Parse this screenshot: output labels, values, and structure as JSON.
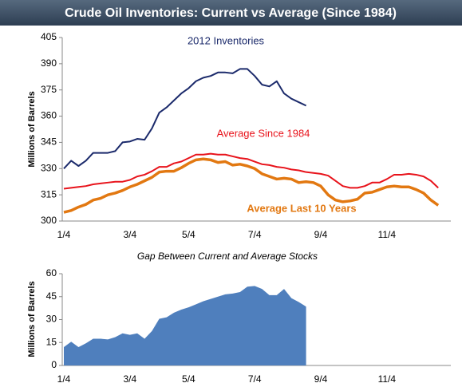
{
  "title": "Crude Oil Inventories: Current vs Average (Since 1984)",
  "chart_data": [
    {
      "type": "line",
      "ylabel": "Millions of Barrels",
      "categories": [
        "1/4",
        null,
        null,
        null,
        null,
        null,
        null,
        null,
        null,
        "3/4",
        null,
        null,
        null,
        null,
        null,
        null,
        null,
        "5/4",
        null,
        null,
        null,
        null,
        null,
        null,
        null,
        null,
        "7/4",
        null,
        null,
        null,
        null,
        null,
        null,
        null,
        null,
        "9/4",
        null,
        null,
        null,
        null,
        null,
        null,
        null,
        null,
        "11/4",
        null,
        null,
        null,
        null,
        null,
        null,
        null
      ],
      "ylim": [
        300,
        405
      ],
      "yticks": [
        300,
        315,
        330,
        345,
        360,
        375,
        390,
        405
      ],
      "grid": false,
      "series": [
        {
          "name": "2012 Inventories",
          "color": "#1b2a6b",
          "values": [
            330,
            334.5,
            331.5,
            334.5,
            339,
            339,
            339,
            340,
            345,
            345.5,
            347,
            346.5,
            353,
            362,
            365,
            369,
            373,
            376,
            380,
            382,
            383,
            385,
            385,
            384.5,
            387,
            387,
            383,
            378,
            377,
            380,
            373,
            370,
            368,
            366,
            null,
            null,
            null,
            null,
            null,
            null,
            null,
            null,
            null,
            null,
            null,
            null,
            null,
            null,
            null,
            null,
            null,
            null
          ]
        },
        {
          "name": "Average Since 1984",
          "color": "#e8131b",
          "values": [
            318.5,
            319,
            319.5,
            320,
            321,
            321.5,
            322,
            322.5,
            322.5,
            323.5,
            325.5,
            326.5,
            328.5,
            331,
            331,
            333,
            334,
            336,
            338,
            338,
            338.5,
            338,
            338,
            337,
            336,
            335.5,
            334,
            332.5,
            332,
            331,
            330.5,
            329.5,
            329,
            328,
            327.5,
            327,
            326,
            323,
            320,
            319,
            319,
            320,
            322,
            322,
            324,
            326.5,
            326.5,
            327,
            326.5,
            325.5,
            323,
            319
          ]
        },
        {
          "name": "Average Last 10 Years",
          "color": "#e27811",
          "values": [
            305,
            306,
            308,
            309.5,
            312,
            313,
            315,
            316,
            317.5,
            319.5,
            321,
            323,
            325,
            328,
            328.5,
            328.5,
            330.5,
            333,
            335,
            335.5,
            335,
            333.5,
            334,
            332,
            332.5,
            331.5,
            330,
            327,
            325.5,
            324,
            324.5,
            324,
            322,
            322.5,
            322,
            320,
            315,
            312,
            311,
            311.5,
            312.5,
            316,
            316.5,
            318,
            319.5,
            320,
            319.5,
            319.5,
            318,
            316,
            312,
            309
          ]
        }
      ]
    },
    {
      "type": "area",
      "title": "Gap Between Current and Average Stocks",
      "ylabel": "Millions of Barrels",
      "categories": [
        "1/4",
        null,
        null,
        null,
        null,
        null,
        null,
        null,
        null,
        "3/4",
        null,
        null,
        null,
        null,
        null,
        null,
        null,
        "5/4",
        null,
        null,
        null,
        null,
        null,
        null,
        null,
        null,
        "7/4",
        null,
        null,
        null,
        null,
        null,
        null,
        null,
        null,
        "9/4",
        null,
        null,
        null,
        null,
        null,
        null,
        null,
        null,
        "11/4",
        null,
        null,
        null,
        null,
        null,
        null,
        null
      ],
      "ylim": [
        0,
        60
      ],
      "yticks": [
        0,
        15,
        30,
        45,
        60
      ],
      "grid": false,
      "color": "#4f7fbd",
      "values": [
        12,
        15.5,
        12,
        14.5,
        17.5,
        17.5,
        17,
        18.5,
        21,
        20,
        21,
        17.5,
        22.5,
        30.5,
        31.5,
        34.5,
        36.5,
        38,
        40,
        42,
        43.5,
        45,
        46.5,
        47,
        48,
        51.5,
        52,
        50,
        46,
        46,
        50,
        44,
        41.5,
        38.5,
        null,
        null,
        null,
        null,
        null,
        null,
        null,
        null,
        null,
        null,
        null,
        null,
        null,
        null,
        null,
        null,
        null,
        null
      ]
    }
  ]
}
